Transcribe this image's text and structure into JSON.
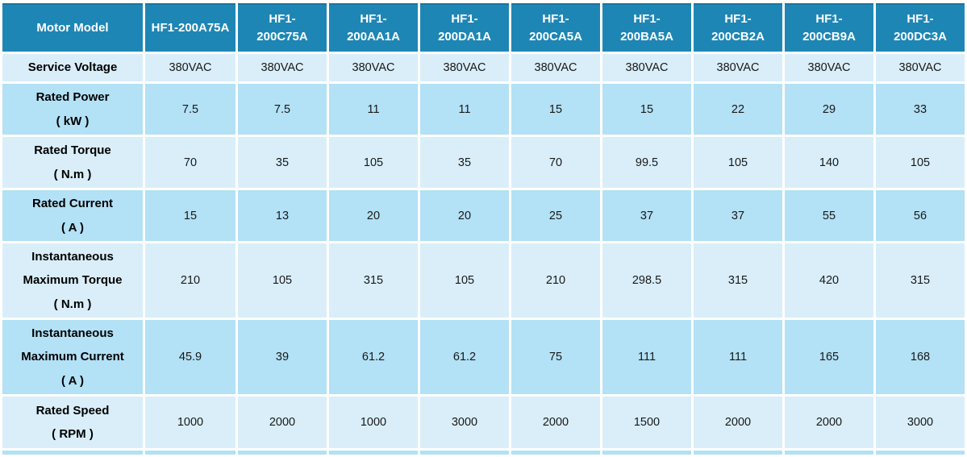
{
  "chart_data": {
    "type": "table",
    "title": "Motor specification table",
    "header": {
      "corner": "Motor Model",
      "models": [
        [
          "HF1-200A75A"
        ],
        [
          "HF1-",
          "200C75A"
        ],
        [
          "HF1-",
          "200AA1A"
        ],
        [
          "HF1-",
          "200DA1A"
        ],
        [
          "HF1-",
          "200CA5A"
        ],
        [
          "HF1-",
          "200BA5A"
        ],
        [
          "HF1-",
          "200CB2A"
        ],
        [
          "HF1-",
          "200CB9A"
        ],
        [
          "HF1-",
          "200DC3A"
        ]
      ]
    },
    "rows": [
      {
        "name": "service-voltage",
        "label_lines": [
          "Service Voltage"
        ],
        "shade": "light",
        "values": [
          "380VAC",
          "380VAC",
          "380VAC",
          "380VAC",
          "380VAC",
          "380VAC",
          "380VAC",
          "380VAC",
          "380VAC"
        ]
      },
      {
        "name": "rated-power-kw",
        "label_lines": [
          "Rated Power",
          "( kW )"
        ],
        "shade": "dark",
        "values": [
          "7.5",
          "7.5",
          "11",
          "11",
          "15",
          "15",
          "22",
          "29",
          "33"
        ]
      },
      {
        "name": "rated-torque-nm",
        "label_lines": [
          "Rated Torque",
          "( N.m )"
        ],
        "shade": "light",
        "values": [
          "70",
          "35",
          "105",
          "35",
          "70",
          "99.5",
          "105",
          "140",
          "105"
        ]
      },
      {
        "name": "rated-current-a",
        "label_lines": [
          "Rated Current",
          "( A )"
        ],
        "shade": "dark",
        "values": [
          "15",
          "13",
          "20",
          "20",
          "25",
          "37",
          "37",
          "55",
          "56"
        ]
      },
      {
        "name": "instantaneous-maximum-torque-nm",
        "label_lines": [
          "Instantaneous",
          "Maximum Torque",
          "( N.m )"
        ],
        "shade": "light",
        "values": [
          "210",
          "105",
          "315",
          "105",
          "210",
          "298.5",
          "315",
          "420",
          "315"
        ]
      },
      {
        "name": "instantaneous-maximum-current-a",
        "label_lines": [
          "Instantaneous",
          "Maximum Current",
          "( A )"
        ],
        "shade": "dark",
        "values": [
          "45.9",
          "39",
          "61.2",
          "61.2",
          "75",
          "111",
          "111",
          "165",
          "168"
        ]
      },
      {
        "name": "rated-speed-rpm",
        "label_lines": [
          "Rated Speed",
          "( RPM )"
        ],
        "shade": "light",
        "values": [
          "1000",
          "2000",
          "1000",
          "3000",
          "2000",
          "1500",
          "2000",
          "2000",
          "3000"
        ]
      }
    ],
    "partial_next_row": {
      "shade": "dark"
    },
    "colors": {
      "header_bg": "#1E86B5",
      "header_border_top": "#19749F",
      "header_text": "#FFFFFF",
      "row_light_bg": "#D9EEF9",
      "row_dark_bg": "#B3E1F5",
      "body_text": "#181818",
      "grid_gap": "#FFFFFF"
    }
  }
}
